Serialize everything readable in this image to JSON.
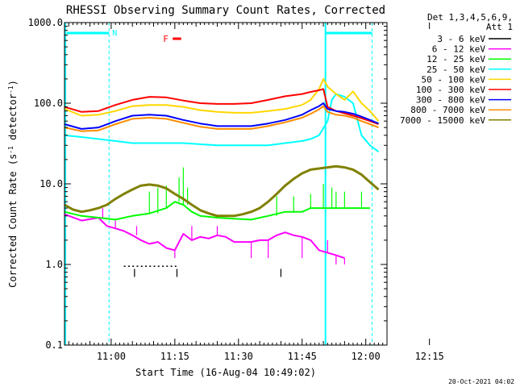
{
  "chart_data": {
    "type": "line",
    "title": "RHESSI Observing Summary Count Rates, Corrected",
    "xlabel": "Start Time (16-Aug-04 10:49:02)",
    "ylabel_main": "Corrected Count Rate (s",
    "ylabel_sup1": "-1",
    "ylabel_mid": " detector",
    "ylabel_sup2": "-1",
    "ylabel_end": ")",
    "y_scale": "log",
    "ylim": [
      0.1,
      1000
    ],
    "x_range_minutes": [
      0,
      76
    ],
    "x_ticks": [
      {
        "label": "11:00",
        "t": 11
      },
      {
        "label": "11:15",
        "t": 26
      },
      {
        "label": "11:30",
        "t": 41
      },
      {
        "label": "11:45",
        "t": 56
      },
      {
        "label": "12:00",
        "t": 71
      },
      {
        "label": "12:15",
        "t": 86
      }
    ],
    "y_ticks": [
      {
        "label": "1000.0",
        "v": 1000
      },
      {
        "label": "100.0",
        "v": 100
      },
      {
        "label": "10.0",
        "v": 10
      },
      {
        "label": "1.0",
        "v": 1
      },
      {
        "label": "0.1",
        "v": 0.1
      }
    ],
    "legend": {
      "placement": "right",
      "header": [
        "Det 1,3,4,5,6,9,",
        "Att 1"
      ],
      "entries": [
        {
          "label": "3 - 6 keV",
          "color": "#000000"
        },
        {
          "label": "6 - 12 keV",
          "color": "#ff00ff"
        },
        {
          "label": "12 - 25 keV",
          "color": "#00ff00"
        },
        {
          "label": "25 - 50 keV",
          "color": "#00ffff"
        },
        {
          "label": "50 - 100 keV",
          "color": "#ffd700"
        },
        {
          "label": "100 - 300 keV",
          "color": "#ff0000"
        },
        {
          "label": "300 - 800 keV",
          "color": "#0000ff"
        },
        {
          "label": "800 - 7000 keV",
          "color": "#ff8c00"
        },
        {
          "label": "7000 - 15000 keV",
          "color": "#808000"
        }
      ]
    },
    "flags": {
      "night_label": "N",
      "flare_label": "F",
      "night_bars": [
        [
          0.5,
          10.5
        ],
        [
          61.5,
          72.5
        ]
      ],
      "flare_bar": [
        25.5,
        27.5
      ],
      "dashed_lines_t": [
        10.5,
        72.5
      ],
      "solid_lines_t": [
        0.2,
        61.5
      ]
    },
    "series": [
      {
        "name": "3 - 6 keV",
        "color": "#000000",
        "style": "ticks",
        "points": [
          [
            14,
            0.95
          ],
          [
            15,
            0.95
          ],
          [
            16,
            0.95
          ],
          [
            17,
            0.95
          ],
          [
            18,
            0.95
          ],
          [
            19,
            0.95
          ],
          [
            20,
            0.95
          ],
          [
            21,
            0.95
          ],
          [
            22,
            0.95
          ],
          [
            23,
            0.95
          ],
          [
            24,
            0.95
          ],
          [
            25,
            0.95
          ],
          [
            26,
            0.95
          ]
        ],
        "spikes": [
          [
            16.5,
            0.7
          ],
          [
            26.5,
            0.7
          ],
          [
            51,
            0.7
          ]
        ]
      },
      {
        "name": "6 - 12 keV",
        "color": "#ff00ff",
        "points": [
          [
            0,
            4.2
          ],
          [
            4,
            3.5
          ],
          [
            8,
            3.8
          ],
          [
            10,
            3.0
          ],
          [
            12,
            2.8
          ],
          [
            14,
            2.6
          ],
          [
            16,
            2.3
          ],
          [
            18,
            2.0
          ],
          [
            20,
            1.8
          ],
          [
            22,
            1.9
          ],
          [
            24,
            1.6
          ],
          [
            26,
            1.5
          ],
          [
            28,
            2.4
          ],
          [
            30,
            2.0
          ],
          [
            32,
            2.2
          ],
          [
            34,
            2.1
          ],
          [
            36,
            2.3
          ],
          [
            38,
            2.2
          ],
          [
            40,
            1.9
          ],
          [
            42,
            1.9
          ],
          [
            44,
            1.9
          ],
          [
            46,
            2.0
          ],
          [
            48,
            2.0
          ],
          [
            50,
            2.3
          ],
          [
            52,
            2.5
          ],
          [
            54,
            2.3
          ],
          [
            56,
            2.2
          ],
          [
            58,
            2.0
          ],
          [
            60,
            1.5
          ],
          [
            62,
            1.4
          ],
          [
            64,
            1.3
          ],
          [
            66,
            1.2
          ]
        ],
        "spikes": [
          [
            9,
            5.0
          ],
          [
            12,
            3.5
          ],
          [
            17,
            3.0
          ],
          [
            26,
            1.2
          ],
          [
            30,
            3.0
          ],
          [
            36,
            3.0
          ],
          [
            44,
            1.2
          ],
          [
            48,
            1.2
          ],
          [
            56,
            1.2
          ],
          [
            62,
            2.0
          ],
          [
            64,
            1.0
          ],
          [
            66,
            1.0
          ]
        ]
      },
      {
        "name": "12 - 25 keV",
        "color": "#00ff00",
        "points": [
          [
            0,
            4.5
          ],
          [
            4,
            4.0
          ],
          [
            8,
            3.8
          ],
          [
            12,
            3.6
          ],
          [
            16,
            4.0
          ],
          [
            20,
            4.3
          ],
          [
            24,
            5.0
          ],
          [
            26,
            6.0
          ],
          [
            28,
            5.5
          ],
          [
            30,
            4.5
          ],
          [
            32,
            4.0
          ],
          [
            36,
            3.8
          ],
          [
            40,
            3.7
          ],
          [
            44,
            3.6
          ],
          [
            48,
            4.0
          ],
          [
            52,
            4.5
          ],
          [
            56,
            4.5
          ],
          [
            58,
            5.0
          ],
          [
            60,
            5.0
          ],
          [
            62,
            5.0
          ],
          [
            64,
            5.0
          ],
          [
            68,
            5.0
          ],
          [
            72,
            5.0
          ]
        ],
        "spikes": [
          [
            20,
            8.0
          ],
          [
            22,
            9.0
          ],
          [
            24,
            9.5
          ],
          [
            27,
            12.0
          ],
          [
            28,
            16.0
          ],
          [
            29,
            9.0
          ],
          [
            50,
            7.0
          ],
          [
            54,
            7.0
          ],
          [
            58,
            7.5
          ],
          [
            61,
            10.0
          ],
          [
            63,
            9.0
          ],
          [
            64,
            8.0
          ],
          [
            66,
            8.0
          ],
          [
            70,
            8.0
          ]
        ]
      },
      {
        "name": "25 - 50 keV",
        "color": "#00ffff",
        "points": [
          [
            0,
            40
          ],
          [
            4,
            38
          ],
          [
            8,
            36
          ],
          [
            12,
            34
          ],
          [
            16,
            32
          ],
          [
            20,
            32
          ],
          [
            24,
            32
          ],
          [
            28,
            32
          ],
          [
            32,
            31
          ],
          [
            36,
            30
          ],
          [
            40,
            30
          ],
          [
            44,
            30
          ],
          [
            48,
            30
          ],
          [
            52,
            32
          ],
          [
            56,
            34
          ],
          [
            58,
            36
          ],
          [
            60,
            40
          ],
          [
            62,
            60
          ],
          [
            63,
            110
          ],
          [
            64,
            130
          ],
          [
            66,
            120
          ],
          [
            68,
            100
          ],
          [
            70,
            40
          ],
          [
            72,
            30
          ],
          [
            74,
            25
          ]
        ]
      },
      {
        "name": "50 - 100 keV",
        "color": "#ffd700",
        "points": [
          [
            0,
            85
          ],
          [
            4,
            70
          ],
          [
            8,
            72
          ],
          [
            12,
            80
          ],
          [
            16,
            92
          ],
          [
            20,
            95
          ],
          [
            24,
            95
          ],
          [
            28,
            90
          ],
          [
            32,
            82
          ],
          [
            36,
            78
          ],
          [
            40,
            76
          ],
          [
            44,
            76
          ],
          [
            48,
            80
          ],
          [
            52,
            85
          ],
          [
            56,
            95
          ],
          [
            58,
            110
          ],
          [
            60,
            150
          ],
          [
            61,
            200
          ],
          [
            62,
            160
          ],
          [
            64,
            130
          ],
          [
            66,
            110
          ],
          [
            68,
            140
          ],
          [
            70,
            100
          ],
          [
            72,
            80
          ],
          [
            74,
            60
          ]
        ]
      },
      {
        "name": "100 - 300 keV",
        "color": "#ff0000",
        "points": [
          [
            0,
            90
          ],
          [
            4,
            78
          ],
          [
            8,
            80
          ],
          [
            12,
            95
          ],
          [
            16,
            110
          ],
          [
            20,
            120
          ],
          [
            24,
            118
          ],
          [
            28,
            108
          ],
          [
            32,
            100
          ],
          [
            36,
            98
          ],
          [
            40,
            98
          ],
          [
            44,
            100
          ],
          [
            48,
            110
          ],
          [
            52,
            122
          ],
          [
            56,
            130
          ],
          [
            58,
            138
          ],
          [
            60,
            145
          ],
          [
            61,
            150
          ],
          [
            62,
            90
          ],
          [
            64,
            80
          ],
          [
            66,
            75
          ],
          [
            68,
            70
          ],
          [
            70,
            65
          ],
          [
            72,
            60
          ],
          [
            74,
            55
          ]
        ]
      },
      {
        "name": "300 - 800 keV",
        "color": "#0000ff",
        "points": [
          [
            0,
            55
          ],
          [
            4,
            48
          ],
          [
            8,
            50
          ],
          [
            12,
            60
          ],
          [
            16,
            70
          ],
          [
            20,
            72
          ],
          [
            24,
            70
          ],
          [
            28,
            62
          ],
          [
            32,
            56
          ],
          [
            36,
            52
          ],
          [
            40,
            52
          ],
          [
            44,
            52
          ],
          [
            48,
            56
          ],
          [
            52,
            62
          ],
          [
            56,
            72
          ],
          [
            58,
            82
          ],
          [
            60,
            92
          ],
          [
            61,
            100
          ],
          [
            62,
            85
          ],
          [
            64,
            80
          ],
          [
            66,
            78
          ],
          [
            68,
            74
          ],
          [
            70,
            68
          ],
          [
            72,
            62
          ],
          [
            74,
            56
          ]
        ]
      },
      {
        "name": "800 - 7000 keV",
        "color": "#ff8c00",
        "points": [
          [
            0,
            50
          ],
          [
            4,
            45
          ],
          [
            8,
            46
          ],
          [
            12,
            55
          ],
          [
            16,
            64
          ],
          [
            20,
            66
          ],
          [
            24,
            64
          ],
          [
            28,
            57
          ],
          [
            32,
            51
          ],
          [
            36,
            48
          ],
          [
            40,
            48
          ],
          [
            44,
            48
          ],
          [
            48,
            52
          ],
          [
            52,
            58
          ],
          [
            56,
            66
          ],
          [
            58,
            74
          ],
          [
            60,
            84
          ],
          [
            61,
            92
          ],
          [
            62,
            78
          ],
          [
            64,
            72
          ],
          [
            66,
            70
          ],
          [
            68,
            66
          ],
          [
            70,
            60
          ],
          [
            72,
            55
          ],
          [
            74,
            50
          ]
        ]
      },
      {
        "name": "7000 - 15000 keV",
        "color": "#808000",
        "points": [
          [
            0,
            5.5
          ],
          [
            2,
            4.8
          ],
          [
            4,
            4.5
          ],
          [
            6,
            4.7
          ],
          [
            8,
            5.0
          ],
          [
            10,
            5.5
          ],
          [
            12,
            6.5
          ],
          [
            14,
            7.5
          ],
          [
            16,
            8.5
          ],
          [
            18,
            9.5
          ],
          [
            20,
            9.8
          ],
          [
            22,
            9.5
          ],
          [
            24,
            8.8
          ],
          [
            26,
            7.5
          ],
          [
            28,
            6.5
          ],
          [
            30,
            5.5
          ],
          [
            32,
            4.7
          ],
          [
            34,
            4.3
          ],
          [
            36,
            4.0
          ],
          [
            38,
            4.0
          ],
          [
            40,
            4.0
          ],
          [
            42,
            4.2
          ],
          [
            44,
            4.5
          ],
          [
            46,
            5.0
          ],
          [
            48,
            6.0
          ],
          [
            50,
            7.5
          ],
          [
            52,
            9.5
          ],
          [
            54,
            11.5
          ],
          [
            56,
            13.5
          ],
          [
            58,
            15.0
          ],
          [
            60,
            15.5
          ],
          [
            62,
            16.0
          ],
          [
            64,
            16.5
          ],
          [
            66,
            16.0
          ],
          [
            68,
            15.0
          ],
          [
            70,
            13.0
          ],
          [
            72,
            10.5
          ],
          [
            74,
            8.5
          ]
        ]
      }
    ]
  },
  "footer": {
    "timestamp": "20-Oct-2021 04:02"
  }
}
